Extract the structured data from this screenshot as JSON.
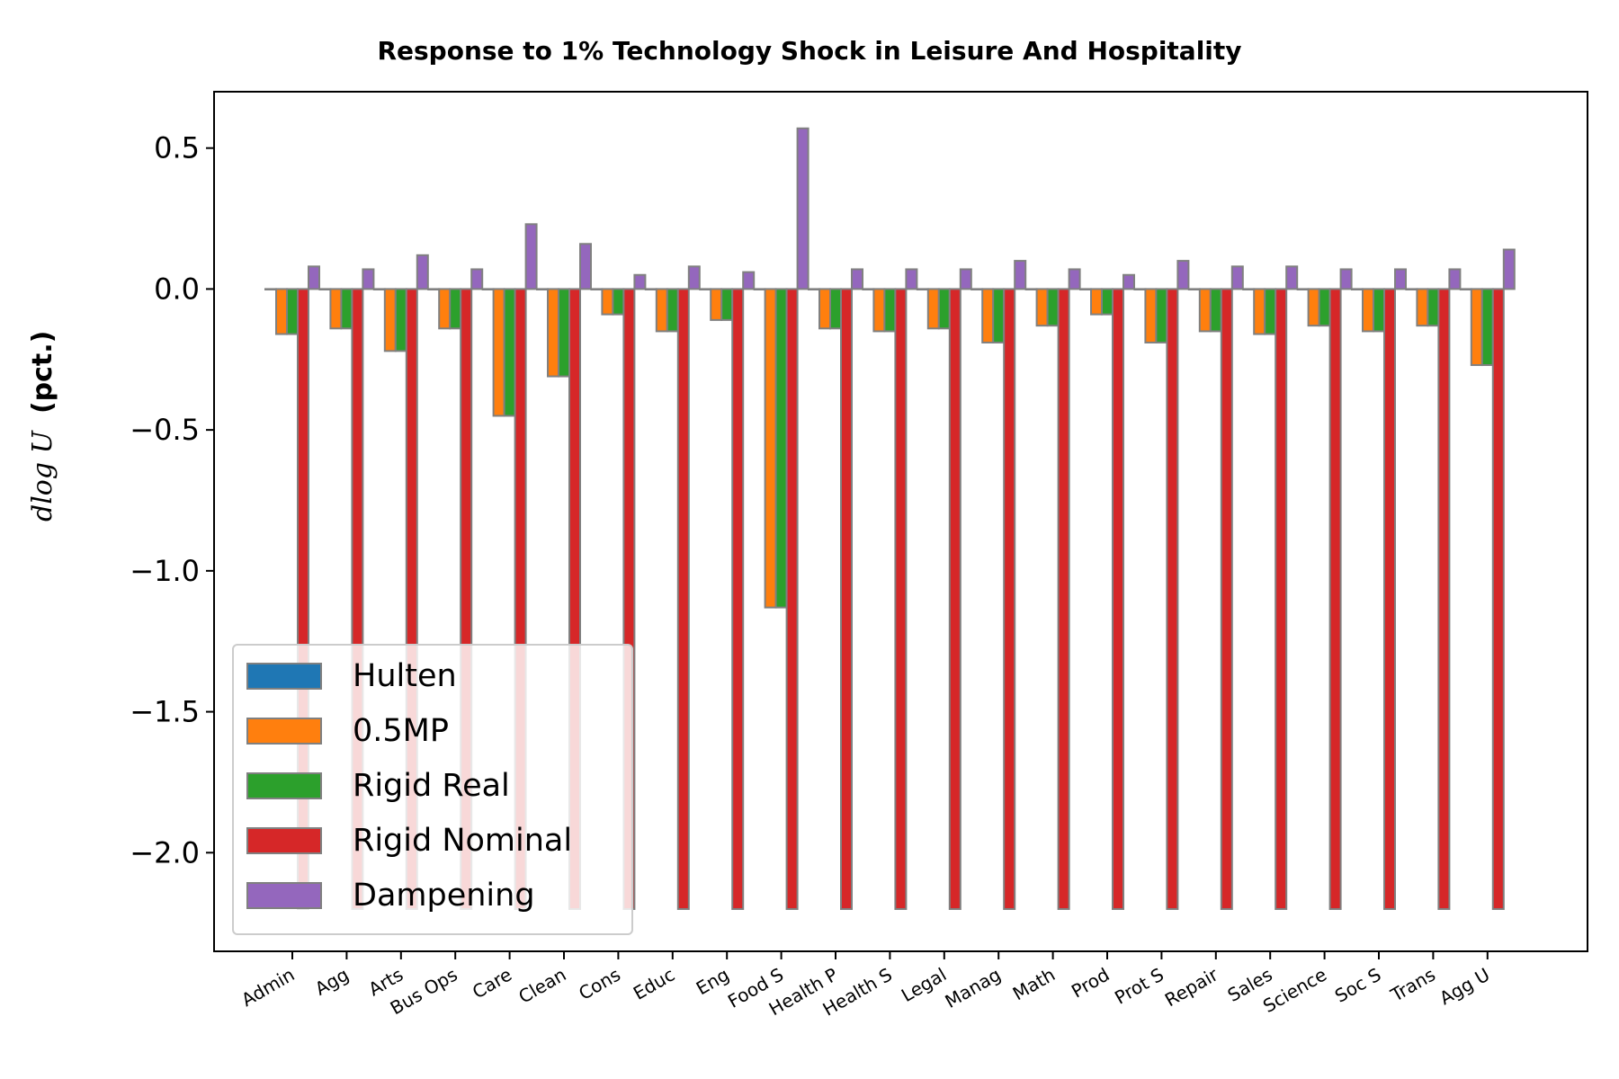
{
  "chart_data": {
    "type": "bar",
    "title": "Response to 1% Technology Shock in Leisure And Hospitality",
    "ylabel": "d log U (pct.)",
    "ylabel_parts": {
      "math": "dlog U",
      "text": "(pct.)"
    },
    "xlabel": "",
    "ylim": [
      -2.35,
      0.7
    ],
    "yticks": [
      0.5,
      0.0,
      -0.5,
      -1.0,
      -1.5,
      -2.0
    ],
    "ytick_labels": [
      "0.5",
      "0.0",
      "−0.5",
      "−1.0",
      "−1.5",
      "−2.0"
    ],
    "clip_min": -2.2,
    "grid": false,
    "legend_position": "lower-left",
    "categories": [
      "Admin",
      "Agg",
      "Arts",
      "Bus Ops",
      "Care",
      "Clean",
      "Cons",
      "Educ",
      "Eng",
      "Food S",
      "Health P",
      "Health S",
      "Legal",
      "Manag",
      "Math",
      "Prod",
      "Prot S",
      "Repair",
      "Sales",
      "Science",
      "Soc S",
      "Trans",
      "Agg U"
    ],
    "series": [
      {
        "name": "Hulten",
        "color": "#1f77b4",
        "values": [
          0,
          0,
          0,
          0,
          0,
          0,
          0,
          0,
          0,
          0,
          0,
          0,
          0,
          0,
          0,
          0,
          0,
          0,
          0,
          0,
          0,
          0,
          0
        ]
      },
      {
        "name": "0.5MP",
        "color": "#ff7f0e",
        "values": [
          -0.16,
          -0.14,
          -0.22,
          -0.14,
          -0.45,
          -0.31,
          -0.09,
          -0.15,
          -0.11,
          -1.13,
          -0.14,
          -0.15,
          -0.14,
          -0.19,
          -0.13,
          -0.09,
          -0.19,
          -0.15,
          -0.16,
          -0.13,
          -0.15,
          -0.13,
          -0.27
        ]
      },
      {
        "name": "Rigid Real",
        "color": "#2ca02c",
        "values": [
          -0.16,
          -0.14,
          -0.22,
          -0.14,
          -0.45,
          -0.31,
          -0.09,
          -0.15,
          -0.11,
          -1.13,
          -0.14,
          -0.15,
          -0.14,
          -0.19,
          -0.13,
          -0.09,
          -0.19,
          -0.15,
          -0.16,
          -0.13,
          -0.15,
          -0.13,
          -0.27
        ]
      },
      {
        "name": "Rigid Nominal",
        "color": "#d62728",
        "values": [
          -2.2,
          -2.2,
          -2.2,
          -2.2,
          -2.2,
          -2.2,
          -2.2,
          -2.2,
          -2.2,
          -2.2,
          -2.2,
          -2.2,
          -2.2,
          -2.2,
          -2.2,
          -2.2,
          -2.2,
          -2.2,
          -2.2,
          -2.2,
          -2.2,
          -2.2,
          -2.2
        ]
      },
      {
        "name": "Dampening",
        "color": "#9467bd",
        "values": [
          0.08,
          0.07,
          0.12,
          0.07,
          0.23,
          0.16,
          0.05,
          0.08,
          0.06,
          0.57,
          0.07,
          0.07,
          0.07,
          0.1,
          0.07,
          0.05,
          0.1,
          0.08,
          0.08,
          0.07,
          0.07,
          0.07,
          0.14
        ]
      }
    ]
  }
}
